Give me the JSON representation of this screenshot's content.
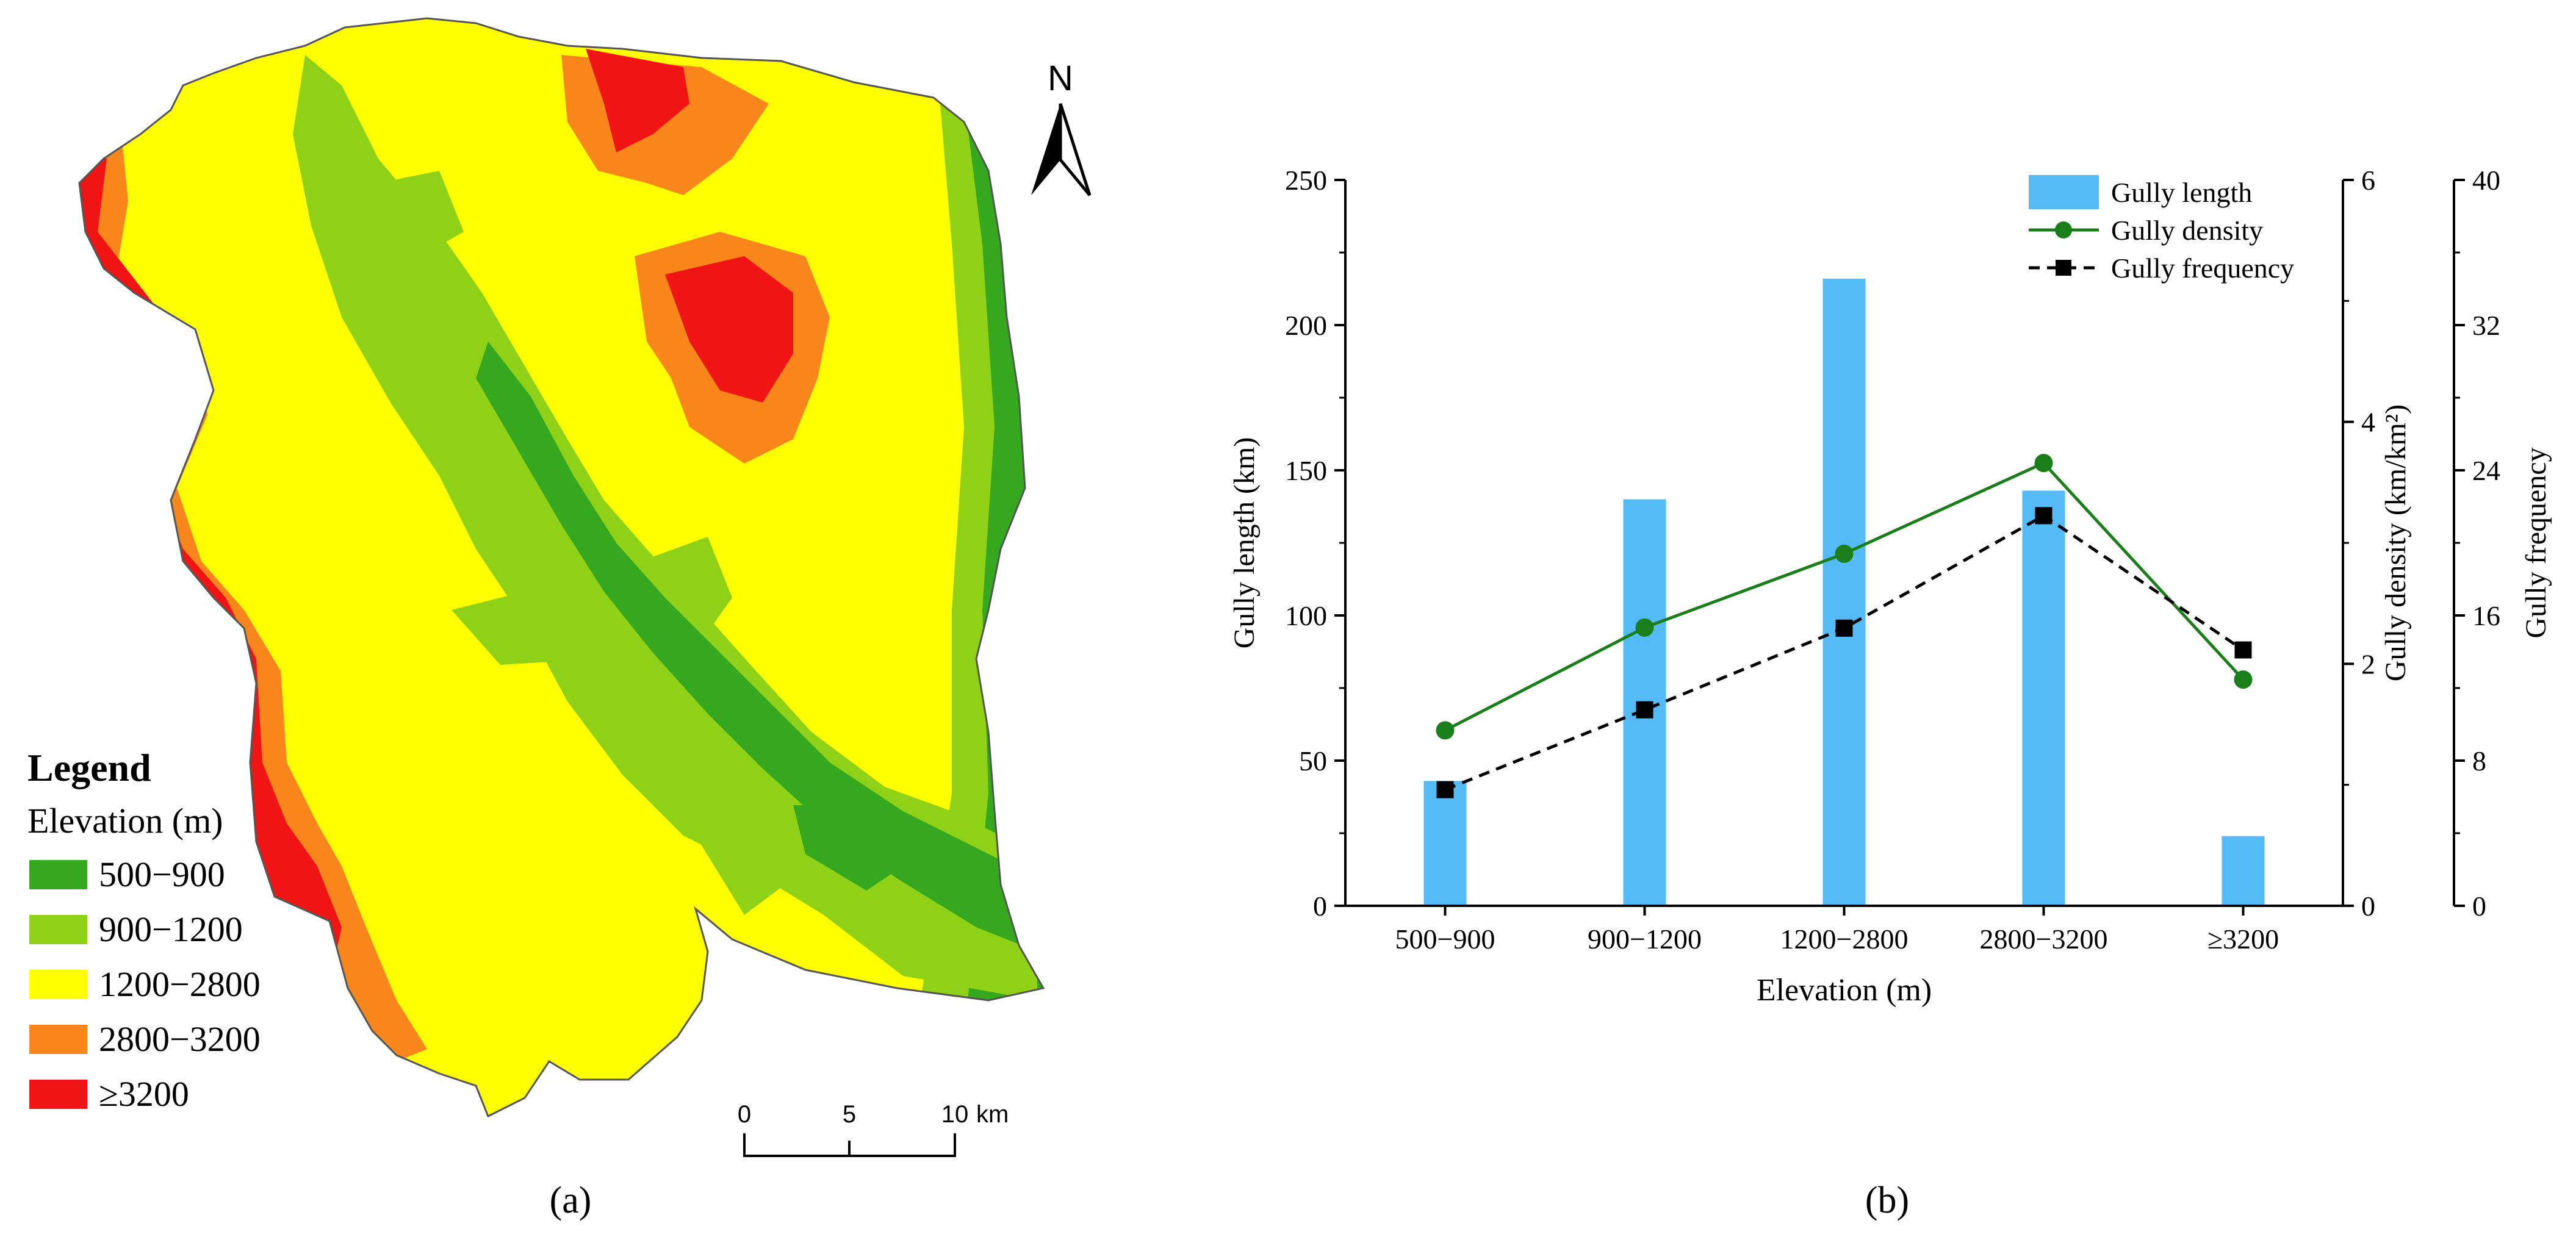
{
  "panel_a": {
    "caption": "(a)",
    "north_label": "N",
    "legend": {
      "title": "Legend",
      "subtitle": "Elevation (m)",
      "items": [
        {
          "label": "500−900",
          "color": "#36a81f"
        },
        {
          "label": "900−1200",
          "color": "#8fd117"
        },
        {
          "label": "1200−2800",
          "color": "#ffff00"
        },
        {
          "label": "2800−3200",
          "color": "#f9861a"
        },
        {
          "label": "≥3200",
          "color": "#f01414"
        }
      ]
    },
    "scale_bar": {
      "ticks": [
        "0",
        "5",
        "10"
      ],
      "unit": "km"
    }
  },
  "panel_b": {
    "caption": "(b)"
  },
  "chart_data": {
    "type": "bar",
    "categories": [
      "500−900",
      "900−1200",
      "1200−2800",
      "2800−3200",
      "≥3200"
    ],
    "xlabel": "Elevation (m)",
    "series": [
      {
        "name": "Gully length",
        "kind": "bar",
        "axis": "left",
        "color": "#55bbf7",
        "values": [
          43,
          140,
          216,
          143,
          24
        ]
      },
      {
        "name": "Gully density",
        "kind": "line",
        "axis": "right1",
        "color": "#1a7f1a",
        "marker": "circle",
        "values": [
          1.45,
          2.3,
          2.91,
          3.66,
          1.87
        ]
      },
      {
        "name": "Gully frequency",
        "kind": "line",
        "axis": "right2",
        "color": "#000000",
        "marker": "square",
        "dash": true,
        "values": [
          6.4,
          10.8,
          15.3,
          21.5,
          14.1
        ]
      }
    ],
    "axes": {
      "left": {
        "label": "Gully length (km)",
        "ylim": [
          0,
          250
        ],
        "ticks": [
          0,
          50,
          100,
          150,
          200,
          250
        ]
      },
      "right1": {
        "label": "Gully density (km/km²)",
        "ylim": [
          0,
          6
        ],
        "ticks": [
          0,
          2,
          4,
          6
        ]
      },
      "right2": {
        "label": "Gully frequency",
        "ylim": [
          0,
          40
        ],
        "ticks": [
          0,
          8,
          16,
          24,
          32,
          40
        ]
      }
    },
    "legend_position": "top-right",
    "grid": false
  }
}
